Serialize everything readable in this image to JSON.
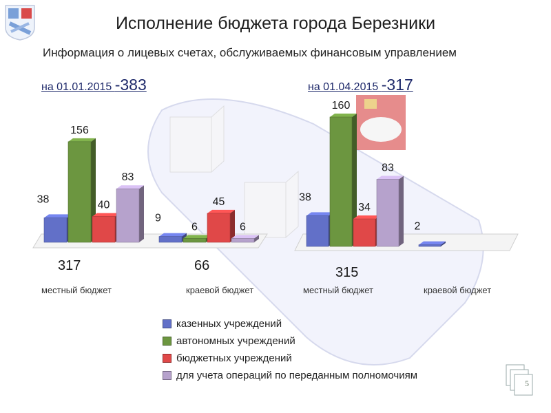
{
  "title": "Исполнение бюджета города Березники",
  "subtitle": "Информация о лицевых счетах, обслуживаемых финансовым управлением",
  "periods": [
    {
      "label": "на 01.01.2015 ",
      "total": "-383"
    },
    {
      "label": "на 01.04.2015 ",
      "total": "-317"
    }
  ],
  "slide_number": "5",
  "colors": {
    "kazennye": "#6270c8",
    "avtonomnye": "#6c9640",
    "byudzhetnye": "#e04848",
    "polnomochiya": "#b6a2cc",
    "heading": "#1f2a6b"
  },
  "chart_data": [
    {
      "type": "bar",
      "period": "на 01.01.2015",
      "categories": [
        "местный бюджет",
        "краевой бюджет"
      ],
      "category_totals": [
        "317",
        "66"
      ],
      "series": [
        {
          "name": "казенных учреждений",
          "values": [
            38,
            9
          ]
        },
        {
          "name": "автономных учреждений",
          "values": [
            156,
            6
          ]
        },
        {
          "name": "бюджетных учреждений",
          "values": [
            40,
            45
          ]
        },
        {
          "name": "для учета операций по переданным полномочиям",
          "values": [
            83,
            6
          ]
        }
      ]
    },
    {
      "type": "bar",
      "period": "на 01.04.2015",
      "categories": [
        "местный бюджет",
        "краевой бюджет"
      ],
      "category_totals": [
        "315",
        ""
      ],
      "series": [
        {
          "name": "казенных учреждений",
          "values": [
            38,
            2
          ]
        },
        {
          "name": "автономных учреждений",
          "values": [
            160,
            0
          ]
        },
        {
          "name": "бюджетных учреждений",
          "values": [
            34,
            0
          ]
        },
        {
          "name": "для учета операций по переданным полномочиям",
          "values": [
            83,
            0
          ]
        }
      ]
    }
  ],
  "legend": [
    {
      "label": "казенных учреждений",
      "color_key": "kazennye"
    },
    {
      "label": "автономных учреждений",
      "color_key": "avtonomnye"
    },
    {
      "label": "бюджетных учреждений",
      "color_key": "byudzhetnye"
    },
    {
      "label": "для учета операций по переданным полномочиям",
      "color_key": "polnomochiya"
    }
  ]
}
